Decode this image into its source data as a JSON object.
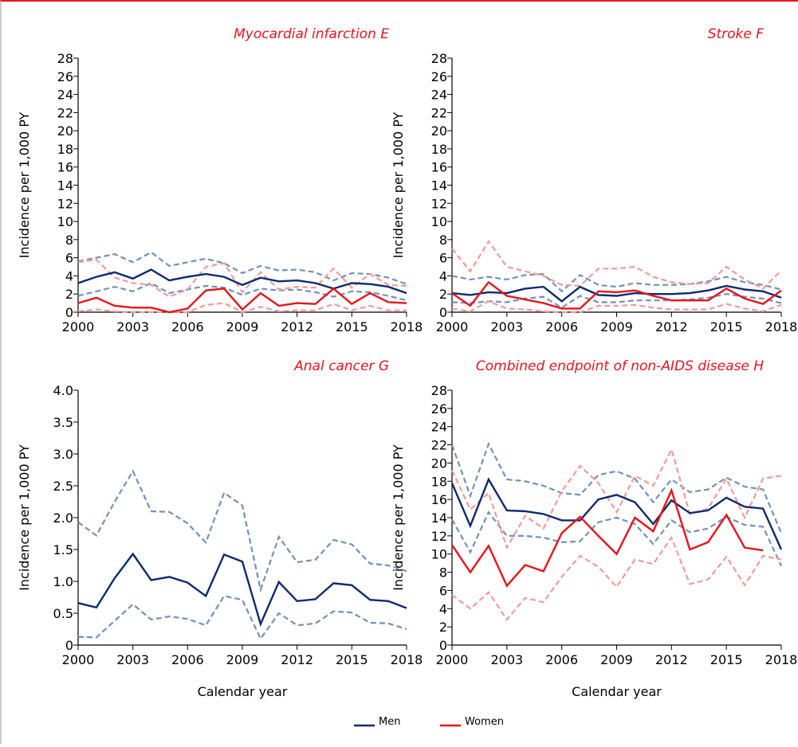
{
  "chart_data": [
    {
      "type": "line",
      "title": "Myocardial infarction   E",
      "ylabel": "Incidence per 1,000 PY",
      "x": [
        2000,
        2001,
        2002,
        2003,
        2004,
        2005,
        2006,
        2007,
        2008,
        2009,
        2010,
        2011,
        2012,
        2013,
        2014,
        2015,
        2016,
        2017,
        2018
      ],
      "xlim": [
        2000,
        2018
      ],
      "xticks": [
        2000,
        2003,
        2006,
        2009,
        2012,
        2015,
        2018
      ],
      "ylim": [
        0,
        28
      ],
      "yticks": [
        0,
        2,
        4,
        6,
        8,
        10,
        12,
        14,
        16,
        18,
        20,
        22,
        24,
        26,
        28
      ],
      "series": [
        {
          "color": "#0d2a6e",
          "ci_color": "#7391b8",
          "values": [
            3.2,
            3.9,
            4.4,
            3.7,
            4.7,
            3.5,
            3.9,
            4.2,
            3.9,
            3.0,
            3.8,
            3.4,
            3.5,
            3.2,
            2.6,
            3.2,
            3.1,
            2.8,
            2.1
          ],
          "upper": [
            5.6,
            6.0,
            6.4,
            5.5,
            6.6,
            5.1,
            5.5,
            5.9,
            5.4,
            4.3,
            5.1,
            4.6,
            4.7,
            4.4,
            3.5,
            4.3,
            4.2,
            3.8,
            3.1
          ],
          "lower": [
            1.8,
            2.3,
            2.8,
            2.3,
            3.2,
            2.1,
            2.5,
            2.9,
            2.7,
            1.9,
            2.6,
            2.4,
            2.5,
            2.2,
            1.7,
            2.3,
            2.2,
            1.8,
            1.3
          ]
        },
        {
          "color": "#e8141c",
          "ci_color": "#f59a9a",
          "values": [
            1.0,
            1.6,
            0.7,
            0.5,
            0.5,
            0.0,
            0.4,
            2.4,
            2.6,
            0.3,
            2.1,
            0.7,
            1.0,
            0.9,
            2.6,
            0.9,
            2.1,
            1.1,
            1.0
          ],
          "upper": [
            5.5,
            5.8,
            3.8,
            3.2,
            3.0,
            1.7,
            2.5,
            5.0,
            5.4,
            2.2,
            4.4,
            2.5,
            2.8,
            2.7,
            4.8,
            2.7,
            4.2,
            3.0,
            2.9
          ],
          "lower": [
            0.1,
            0.3,
            0.1,
            0.0,
            0.0,
            0.0,
            0.0,
            0.8,
            1.0,
            0.0,
            0.6,
            0.1,
            0.2,
            0.2,
            0.9,
            0.2,
            0.7,
            0.2,
            0.2
          ]
        }
      ]
    },
    {
      "type": "line",
      "title": "Stroke   F",
      "ylabel": "Incidence per 1,000 PY",
      "x": [
        2000,
        2001,
        2002,
        2003,
        2004,
        2005,
        2006,
        2007,
        2008,
        2009,
        2010,
        2011,
        2012,
        2013,
        2014,
        2015,
        2016,
        2017,
        2018
      ],
      "xlim": [
        2000,
        2018
      ],
      "xticks": [
        2000,
        2003,
        2006,
        2009,
        2012,
        2015,
        2018
      ],
      "ylim": [
        0,
        28
      ],
      "yticks": [
        0,
        2,
        4,
        6,
        8,
        10,
        12,
        14,
        16,
        18,
        20,
        22,
        24,
        26,
        28
      ],
      "series": [
        {
          "color": "#0d2a6e",
          "ci_color": "#7391b8",
          "values": [
            2.1,
            1.9,
            2.2,
            2.1,
            2.6,
            2.8,
            1.2,
            2.8,
            1.9,
            1.8,
            2.1,
            2.0,
            2.0,
            2.1,
            2.4,
            2.9,
            2.5,
            2.3,
            1.6
          ],
          "upper": [
            4.0,
            3.6,
            3.9,
            3.6,
            4.1,
            4.2,
            2.3,
            4.1,
            3.0,
            2.8,
            3.2,
            3.0,
            3.0,
            3.1,
            3.4,
            3.9,
            3.3,
            3.0,
            2.5
          ],
          "lower": [
            1.1,
            1.0,
            1.2,
            1.1,
            1.5,
            1.7,
            0.5,
            1.8,
            1.1,
            1.1,
            1.3,
            1.3,
            1.3,
            1.4,
            1.6,
            2.0,
            1.7,
            1.5,
            1.0
          ]
        },
        {
          "color": "#e8141c",
          "ci_color": "#f59a9a",
          "values": [
            2.1,
            0.7,
            3.3,
            1.8,
            1.4,
            1.0,
            0.4,
            0.4,
            2.3,
            2.2,
            2.4,
            1.8,
            1.3,
            1.3,
            1.3,
            2.6,
            1.5,
            0.9,
            2.4
          ],
          "upper": [
            7.0,
            4.5,
            7.8,
            5.0,
            4.5,
            4.0,
            3.0,
            2.9,
            4.8,
            4.8,
            5.0,
            3.9,
            3.3,
            3.1,
            3.2,
            5.0,
            3.6,
            2.6,
            4.6
          ],
          "lower": [
            0.4,
            0.1,
            1.2,
            0.4,
            0.3,
            0.1,
            0.0,
            0.0,
            0.7,
            0.7,
            0.8,
            0.5,
            0.3,
            0.3,
            0.3,
            0.9,
            0.4,
            0.1,
            0.8
          ]
        }
      ]
    },
    {
      "type": "line",
      "title": "Anal cancer   G",
      "ylabel": "Incidence per 1,000 PY",
      "xlabel": "Calendar year",
      "x": [
        2000,
        2001,
        2002,
        2003,
        2004,
        2005,
        2006,
        2007,
        2008,
        2009,
        2010,
        2011,
        2012,
        2013,
        2014,
        2015,
        2016,
        2017,
        2018
      ],
      "xlim": [
        2000,
        2018
      ],
      "xticks": [
        2000,
        2003,
        2006,
        2009,
        2012,
        2015,
        2018
      ],
      "ylim": [
        0,
        4
      ],
      "yticks": [
        0,
        0.5,
        {
          "value": 1,
          "label": "1.0"
        },
        1.5,
        {
          "value": 2,
          "label": "2.0"
        },
        2.5,
        {
          "value": 3,
          "label": "3.0"
        },
        3.5,
        {
          "value": 4,
          "label": "4.0"
        }
      ],
      "series": [
        {
          "color": "#0d2a6e",
          "ci_color": "#7391b8",
          "values": [
            0.66,
            0.59,
            1.05,
            1.43,
            1.02,
            1.07,
            0.98,
            0.77,
            1.42,
            1.31,
            0.33,
            0.99,
            0.69,
            0.72,
            0.97,
            0.94,
            0.71,
            0.69,
            0.58
          ],
          "upper": [
            1.93,
            1.72,
            2.25,
            2.73,
            2.1,
            2.09,
            1.91,
            1.61,
            2.39,
            2.19,
            0.87,
            1.7,
            1.3,
            1.34,
            1.65,
            1.58,
            1.28,
            1.25,
            1.16
          ],
          "lower": [
            0.13,
            0.12,
            0.38,
            0.64,
            0.4,
            0.45,
            0.41,
            0.31,
            0.77,
            0.71,
            0.1,
            0.5,
            0.31,
            0.34,
            0.53,
            0.51,
            0.35,
            0.34,
            0.25
          ]
        }
      ]
    },
    {
      "type": "line",
      "title": "Combined endpoint of non-AIDS disease   H",
      "ylabel": "Incidence per 1,000 PY",
      "xlabel": "Calendar year",
      "x": [
        2000,
        2001,
        2002,
        2003,
        2004,
        2005,
        2006,
        2007,
        2008,
        2009,
        2010,
        2011,
        2012,
        2013,
        2014,
        2015,
        2016,
        2017,
        2018
      ],
      "xlim": [
        2000,
        2018
      ],
      "xticks": [
        2000,
        2003,
        2006,
        2009,
        2012,
        2015,
        2018
      ],
      "ylim": [
        0,
        28
      ],
      "yticks": [
        0,
        2,
        4,
        6,
        8,
        10,
        12,
        14,
        16,
        18,
        20,
        22,
        24,
        26,
        28
      ],
      "series": [
        {
          "color": "#0d2a6e",
          "ci_color": "#7391b8",
          "values": [
            17.8,
            13.1,
            18.2,
            14.8,
            14.7,
            14.4,
            13.7,
            13.7,
            16.0,
            16.5,
            15.7,
            13.3,
            15.9,
            14.5,
            14.8,
            16.2,
            15.2,
            15.0,
            10.5
          ],
          "upper": [
            22.0,
            16.4,
            22.1,
            18.2,
            18.0,
            17.5,
            16.7,
            16.5,
            18.7,
            19.1,
            18.3,
            15.7,
            18.2,
            16.8,
            17.1,
            18.4,
            17.4,
            17.1,
            12.3
          ],
          "lower": [
            13.8,
            10.2,
            14.6,
            12.0,
            12.0,
            11.8,
            11.3,
            11.4,
            13.5,
            14.0,
            13.3,
            11.1,
            13.7,
            12.4,
            12.8,
            14.1,
            13.2,
            13.0,
            8.7
          ]
        },
        {
          "color": "#e8141c",
          "ci_color": "#f59a9a",
          "values": [
            11.0,
            8.0,
            10.9,
            6.5,
            8.8,
            8.1,
            12.3,
            14.1,
            12.0,
            10.0,
            14.0,
            12.5,
            17.0,
            10.5,
            11.3,
            14.3,
            10.7,
            10.4,
            null
          ],
          "upper": [
            19.2,
            14.9,
            16.7,
            10.7,
            14.2,
            12.8,
            16.9,
            19.7,
            17.8,
            14.6,
            18.6,
            17.5,
            21.5,
            14.4,
            15.0,
            18.3,
            14.0,
            18.3,
            18.6
          ],
          "lower": [
            5.5,
            4.0,
            5.8,
            2.8,
            5.2,
            4.7,
            7.5,
            9.8,
            8.6,
            6.4,
            9.4,
            8.9,
            11.8,
            6.7,
            7.2,
            9.7,
            6.6,
            9.8,
            9.4
          ]
        }
      ]
    }
  ],
  "legend": [
    {
      "name": "Men",
      "color": "#0d2a6e"
    },
    {
      "name": "Women",
      "color": "#e8141c"
    }
  ]
}
